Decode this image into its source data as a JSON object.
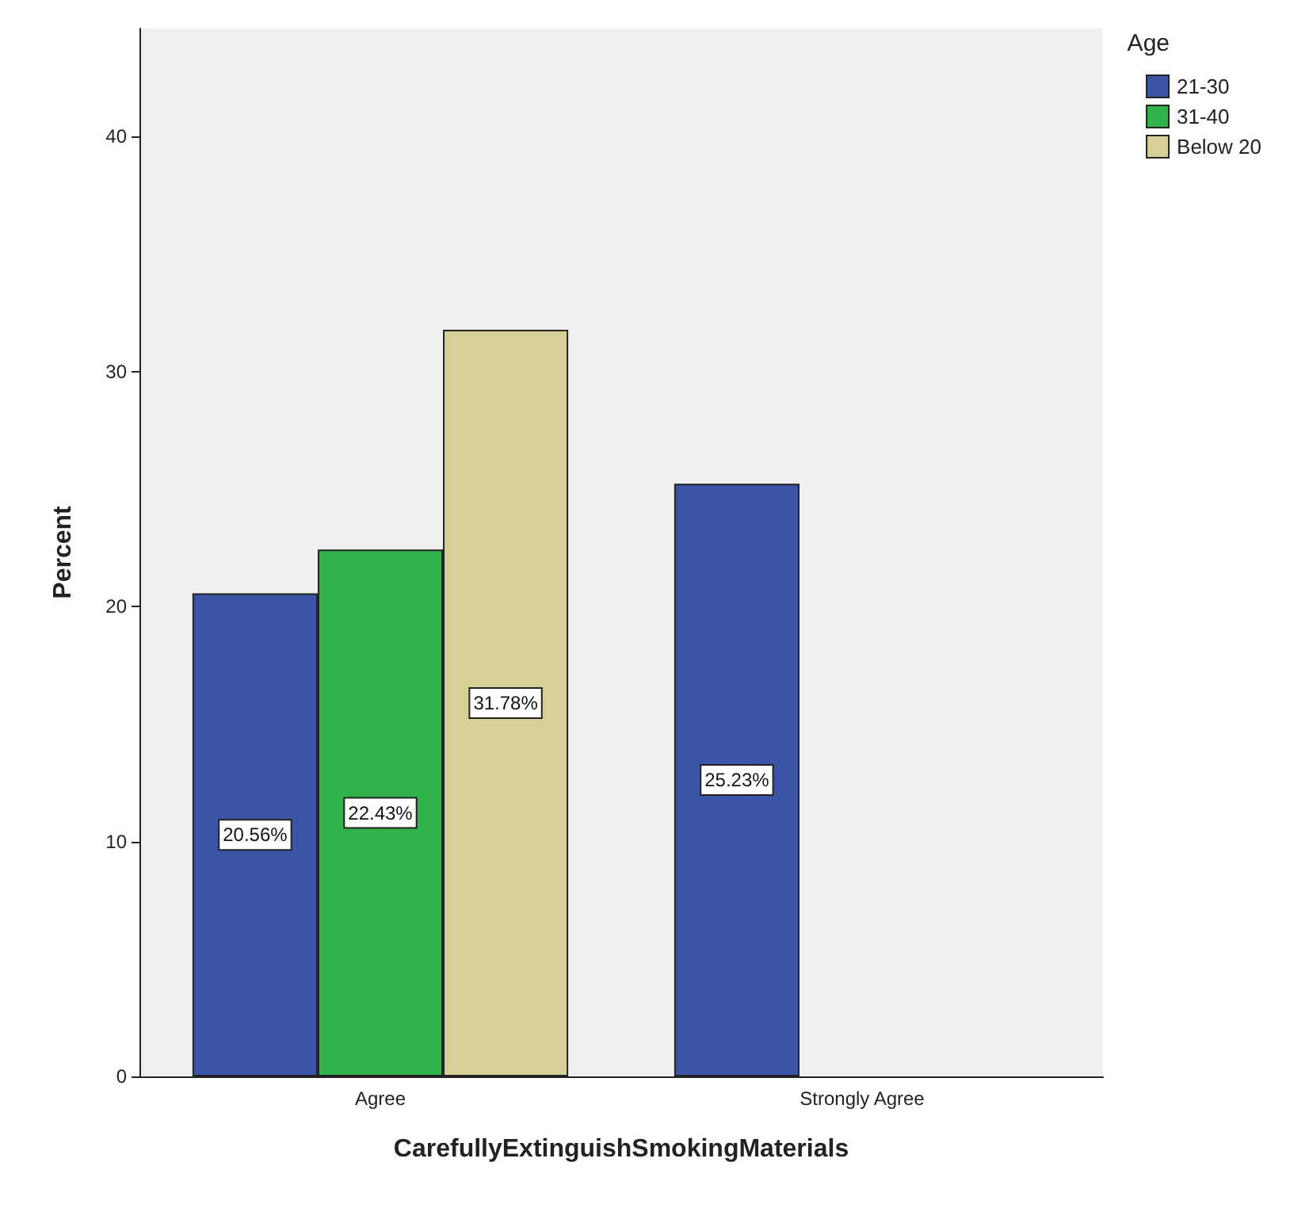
{
  "chart_data": {
    "type": "bar",
    "xlabel": "CarefullyExtinguishSmokingMaterials",
    "ylabel": "Percent",
    "legend_title": "Age",
    "categories": [
      "Agree",
      "Strongly Agree"
    ],
    "series": [
      {
        "name": "21-30",
        "color": "#3b54a5",
        "values": [
          20.56,
          25.23
        ],
        "value_labels": [
          "20.56%",
          "25.23%"
        ]
      },
      {
        "name": "31-40",
        "color": "#2fb34a",
        "values": [
          22.43,
          null
        ],
        "value_labels": [
          "22.43%",
          null
        ]
      },
      {
        "name": "Below 20",
        "color": "#d6cf98",
        "values": [
          31.78,
          null
        ],
        "value_labels": [
          "31.78%",
          null
        ]
      }
    ],
    "ylim": [
      0,
      44.6
    ],
    "yticks": [
      0,
      10,
      20,
      30,
      40
    ],
    "grid": false,
    "legend": "top right"
  }
}
